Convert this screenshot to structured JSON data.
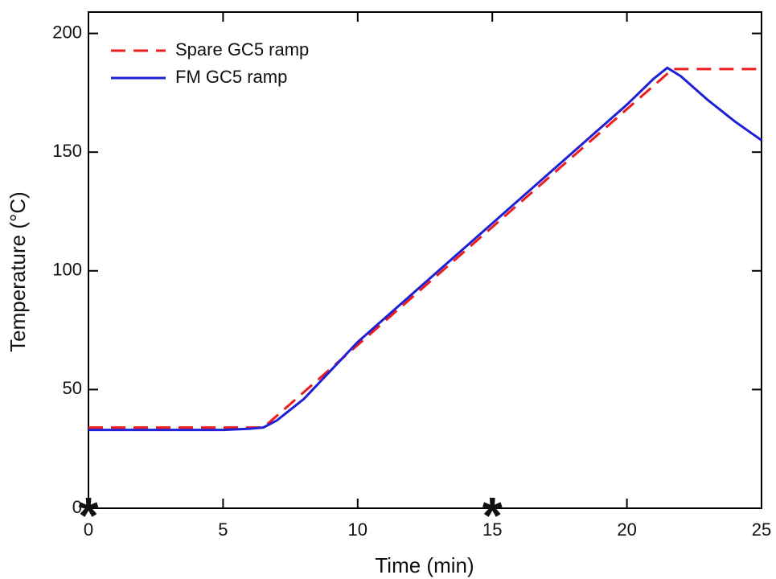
{
  "chart_data": {
    "type": "line",
    "x_label": "Time (min)",
    "y_label": "Temperature (°C)",
    "xlim": [
      0,
      25
    ],
    "xticks": [
      0,
      5,
      10,
      15,
      20,
      25
    ],
    "ylim": [
      0,
      209
    ],
    "yticks": [
      0,
      50,
      100,
      150,
      200
    ],
    "legend": "upper left",
    "series": [
      {
        "name": "Spare GC5 ramp",
        "color": "#ee1c1c",
        "dashed": true,
        "x": [
          0,
          6.5,
          21.7,
          25
        ],
        "values": [
          34,
          34,
          185,
          185
        ]
      },
      {
        "name": "FM GC5 ramp",
        "color": "#1f1fd6",
        "dashed": false,
        "x": [
          0,
          5,
          6,
          6.5,
          7,
          7.5,
          8,
          10,
          15,
          20,
          21,
          21.5,
          22,
          23,
          24,
          25
        ],
        "values": [
          33,
          33,
          33.5,
          34,
          37,
          41.5,
          46,
          70,
          120,
          170,
          181,
          185.5,
          182,
          172,
          163,
          155
        ]
      }
    ],
    "annotations": [
      {
        "text": "*",
        "x": 0
      },
      {
        "text": "*",
        "x": 15
      }
    ]
  }
}
